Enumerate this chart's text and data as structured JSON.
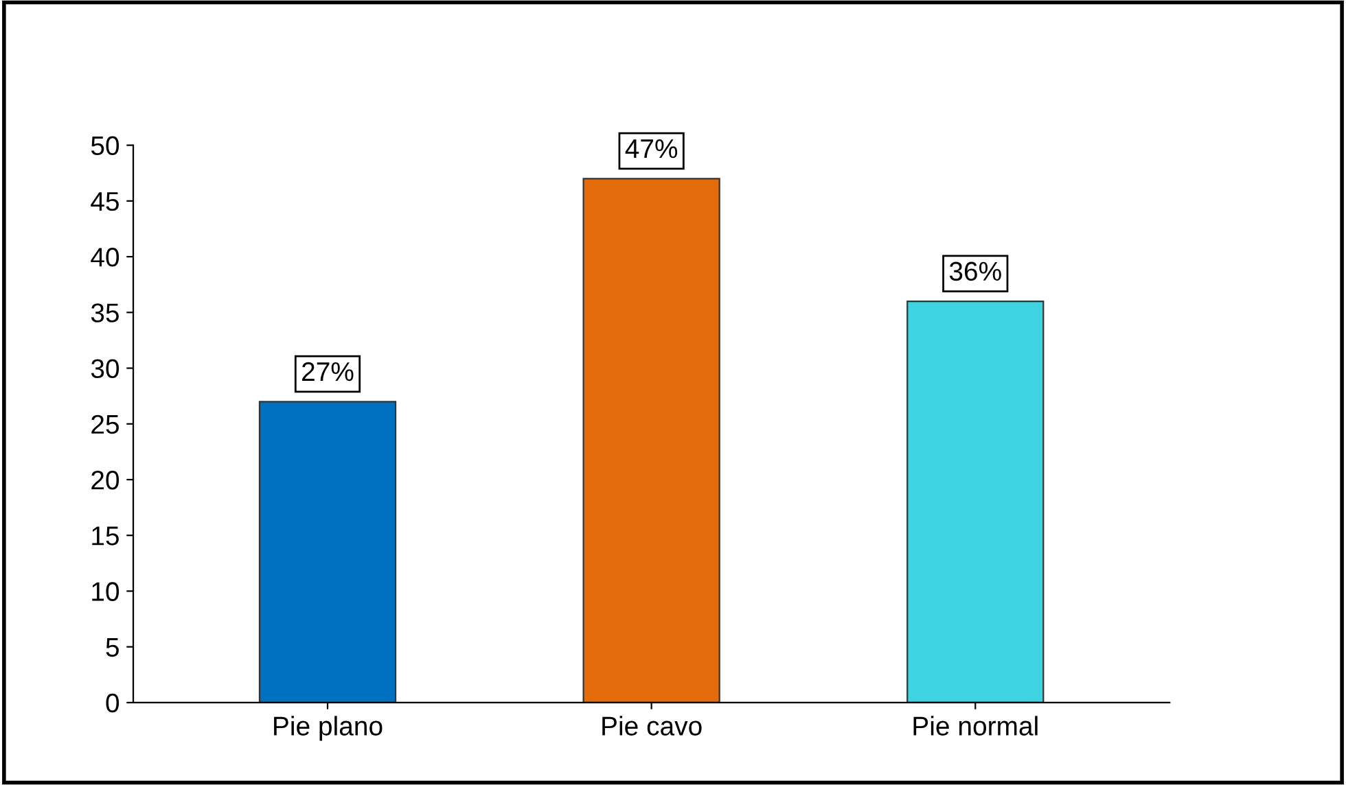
{
  "chart_data": {
    "type": "bar",
    "categories": [
      "Pie plano",
      "Pie cavo",
      "Pie normal"
    ],
    "values": [
      27,
      47,
      36
    ],
    "colors": [
      "#0070c0",
      "#e46c0a",
      "#3dd3e0"
    ],
    "value_labels": [
      "27%",
      "47%",
      "36%"
    ],
    "ylim": [
      0,
      50
    ],
    "yticks": [
      0,
      5,
      10,
      15,
      20,
      25,
      30,
      35,
      40,
      45,
      50
    ],
    "grid": false,
    "legend": false
  }
}
